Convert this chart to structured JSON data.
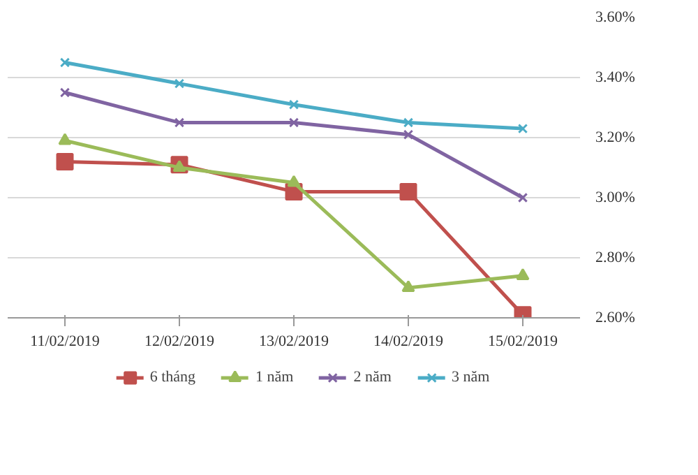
{
  "chart_data": {
    "type": "line",
    "categories": [
      "11/02/2019",
      "12/02/2019",
      "13/02/2019",
      "14/02/2019",
      "15/02/2019"
    ],
    "series": [
      {
        "name": "6 tháng",
        "color": "#c0504d",
        "marker": "square",
        "values": [
          3.12,
          3.11,
          3.02,
          3.02,
          2.61
        ]
      },
      {
        "name": "1 năm",
        "color": "#9bbb59",
        "marker": "triangle",
        "values": [
          3.19,
          3.1,
          3.05,
          2.7,
          2.74
        ]
      },
      {
        "name": "2 năm",
        "color": "#8064a2",
        "marker": "cross",
        "values": [
          3.35,
          3.25,
          3.25,
          3.21,
          3.0
        ]
      },
      {
        "name": "3 năm",
        "color": "#4bacc6",
        "marker": "cross",
        "values": [
          3.45,
          3.38,
          3.31,
          3.25,
          3.23
        ]
      }
    ],
    "ylim": [
      2.6,
      3.6
    ],
    "yticks": [
      {
        "value": 2.6,
        "label": "2.60%"
      },
      {
        "value": 2.8,
        "label": "2.80%"
      },
      {
        "value": 3.0,
        "label": "3.00%"
      },
      {
        "value": 3.2,
        "label": "3.20%"
      },
      {
        "value": 3.4,
        "label": "3.40%"
      },
      {
        "value": 3.6,
        "label": "3.60%"
      }
    ],
    "grid": "y",
    "legend": "bottom",
    "line_style": "solid"
  }
}
